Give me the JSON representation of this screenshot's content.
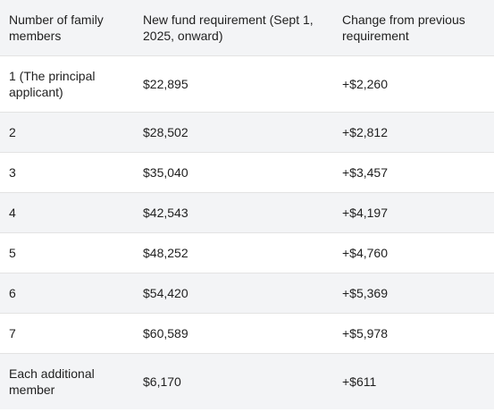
{
  "table": {
    "headers": [
      "Number of family members",
      "New fund requirement (Sept 1, 2025, onward)",
      "Change from previous requirement"
    ],
    "rows": [
      [
        "1 (The principal applicant)",
        "$22,895",
        "+$2,260"
      ],
      [
        "2",
        "$28,502",
        "+$2,812"
      ],
      [
        "3",
        "$35,040",
        "+$3,457"
      ],
      [
        "4",
        "$42,543",
        "+$4,197"
      ],
      [
        "5",
        "$48,252",
        "+$4,760"
      ],
      [
        "6",
        "$54,420",
        "+$5,369"
      ],
      [
        "7",
        "$60,589",
        "+$5,978"
      ],
      [
        "Each additional member",
        "$6,170",
        "+$611"
      ]
    ]
  }
}
